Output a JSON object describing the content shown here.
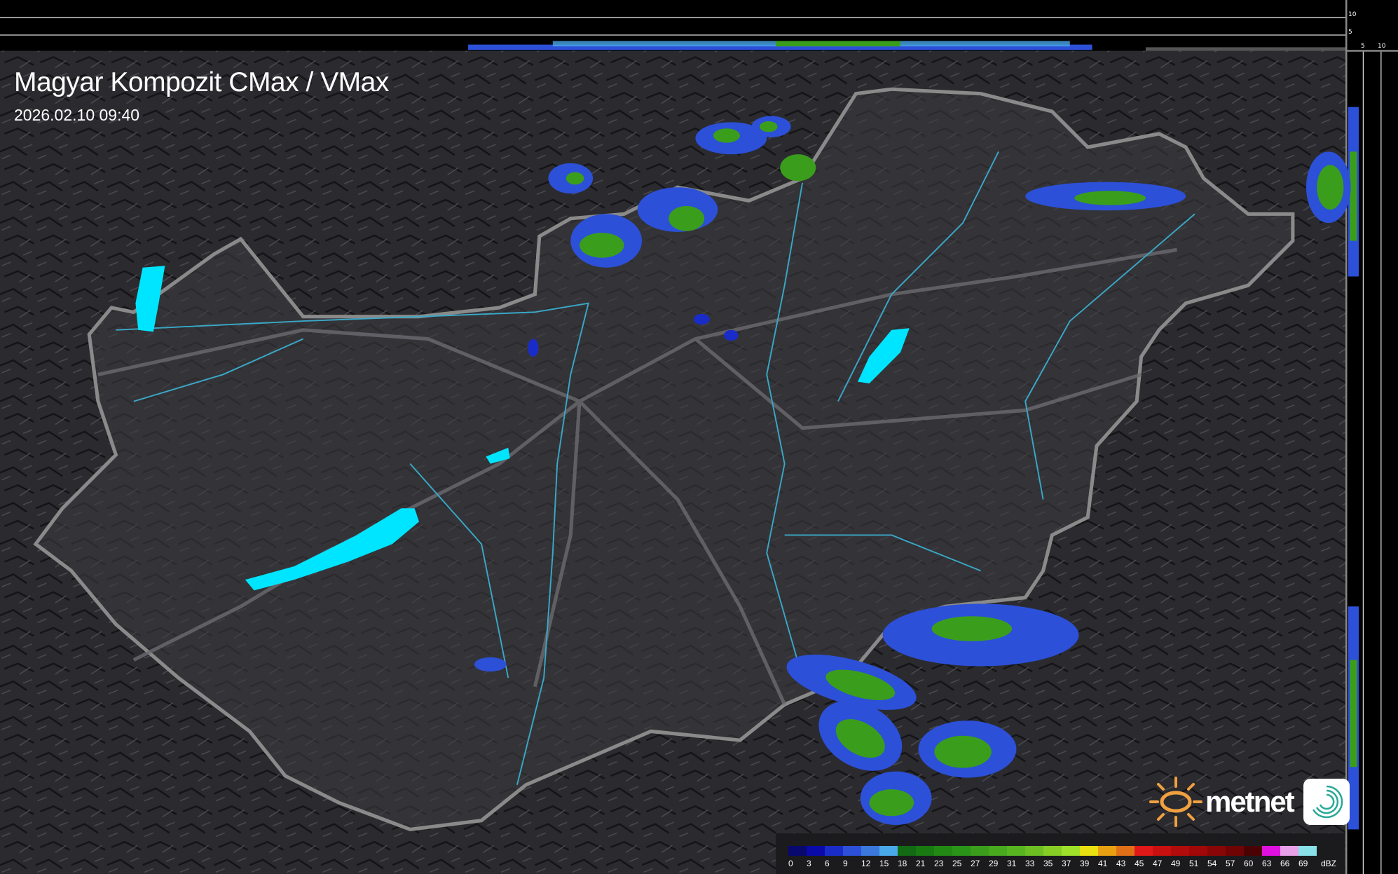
{
  "header": {
    "title": "Magyar Kompozit CMax / VMax",
    "datetime": "2026.02.10 09:40"
  },
  "side_profiles": {
    "top_scale_labels": [
      "10",
      "5"
    ],
    "right_scale_labels": [
      "5",
      "10"
    ]
  },
  "legend": {
    "unit": "dBZ",
    "items": [
      {
        "label": "0",
        "color": "#08086e"
      },
      {
        "label": "3",
        "color": "#0a0aa8"
      },
      {
        "label": "6",
        "color": "#1a2cc8"
      },
      {
        "label": "9",
        "color": "#2c50d8"
      },
      {
        "label": "12",
        "color": "#3a78dc"
      },
      {
        "label": "15",
        "color": "#48a8e8"
      },
      {
        "label": "18",
        "color": "#126a12"
      },
      {
        "label": "21",
        "color": "#1a7a12"
      },
      {
        "label": "23",
        "color": "#228a14"
      },
      {
        "label": "25",
        "color": "#2a9418"
      },
      {
        "label": "27",
        "color": "#3a9e1c"
      },
      {
        "label": "29",
        "color": "#48a81e"
      },
      {
        "label": "31",
        "color": "#58b420"
      },
      {
        "label": "33",
        "color": "#6cbe22"
      },
      {
        "label": "35",
        "color": "#88cc26"
      },
      {
        "label": "37",
        "color": "#9ee02a"
      },
      {
        "label": "39",
        "color": "#e8e010"
      },
      {
        "label": "41",
        "color": "#e8a010"
      },
      {
        "label": "43",
        "color": "#e07018"
      },
      {
        "label": "45",
        "color": "#e01818"
      },
      {
        "label": "47",
        "color": "#c81010"
      },
      {
        "label": "49",
        "color": "#b00c0c"
      },
      {
        "label": "51",
        "color": "#a00808"
      },
      {
        "label": "54",
        "color": "#880606"
      },
      {
        "label": "57",
        "color": "#700404"
      },
      {
        "label": "60",
        "color": "#4a0202"
      },
      {
        "label": "63",
        "color": "#e010e0"
      },
      {
        "label": "66",
        "color": "#e8a0e8"
      },
      {
        "label": "69",
        "color": "#88e0e8"
      }
    ]
  },
  "logo": {
    "text": "metnet",
    "icon": "swirl-app-icon"
  },
  "colors": {
    "water": "#00e5ff",
    "river": "#3aa8c8",
    "border": "#8a8a8a",
    "country_fill": "#3a3a40",
    "background": "#2a2a2e"
  }
}
